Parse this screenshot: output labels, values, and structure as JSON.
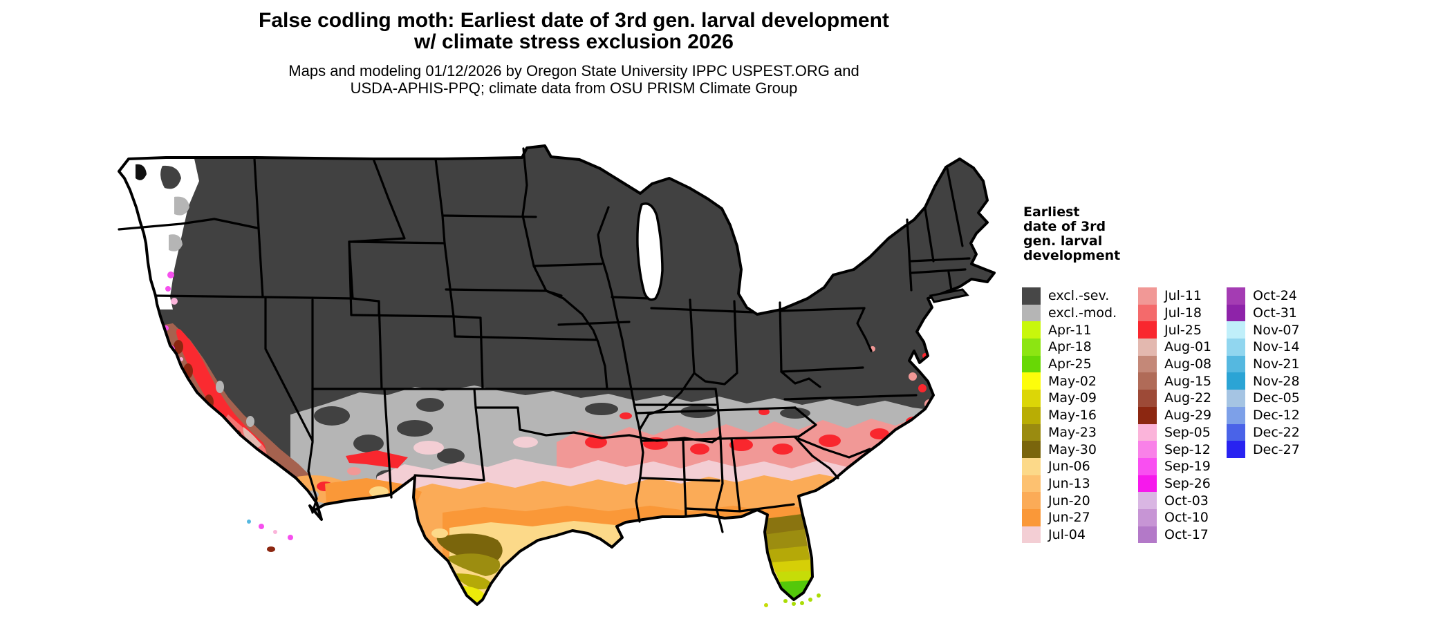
{
  "title": {
    "line1": "False codling moth: Earliest date of 3rd gen. larval development",
    "line2": "w/ climate stress exclusion 2026"
  },
  "subtitle": {
    "line1": "Maps and modeling 01/12/2026 by Oregon State University IPPC USPEST.ORG and",
    "line2": "USDA-APHIS-PPQ; climate data from OSU PRISM Climate Group"
  },
  "legend": {
    "title_lines": [
      "Earliest",
      "date of 3rd",
      "gen. larval",
      "development"
    ],
    "columns": [
      [
        {
          "label": "excl.-sev.",
          "color": "#474747"
        },
        {
          "label": "excl.-mod.",
          "color": "#b5b5b5"
        },
        {
          "label": "Apr-11",
          "color": "#c8f70c"
        },
        {
          "label": "Apr-18",
          "color": "#8ce512"
        },
        {
          "label": "Apr-25",
          "color": "#68d805"
        },
        {
          "label": "May-02",
          "color": "#fdfd0b"
        },
        {
          "label": "May-09",
          "color": "#dcd607"
        },
        {
          "label": "May-16",
          "color": "#b9ad04"
        },
        {
          "label": "May-23",
          "color": "#9a8b10"
        },
        {
          "label": "May-30",
          "color": "#7a650c"
        },
        {
          "label": "Jun-06",
          "color": "#fcd989"
        },
        {
          "label": "Jun-13",
          "color": "#fdc170"
        },
        {
          "label": "Jun-20",
          "color": "#fbab57"
        },
        {
          "label": "Jun-27",
          "color": "#fa9838"
        },
        {
          "label": "Jul-04",
          "color": "#f3ced4"
        }
      ],
      [
        {
          "label": "Jul-11",
          "color": "#f19896"
        },
        {
          "label": "Jul-18",
          "color": "#f46a6b"
        },
        {
          "label": "Jul-25",
          "color": "#f9272e"
        },
        {
          "label": "Aug-01",
          "color": "#e3b8af"
        },
        {
          "label": "Aug-08",
          "color": "#c48878"
        },
        {
          "label": "Aug-15",
          "color": "#b06b58"
        },
        {
          "label": "Aug-22",
          "color": "#9d4a37"
        },
        {
          "label": "Aug-29",
          "color": "#8c2711"
        },
        {
          "label": "Sep-05",
          "color": "#fbb4da"
        },
        {
          "label": "Sep-12",
          "color": "#f981e8"
        },
        {
          "label": "Sep-19",
          "color": "#f94ff1"
        },
        {
          "label": "Sep-26",
          "color": "#f619ec"
        },
        {
          "label": "Oct-03",
          "color": "#d9b6e3"
        },
        {
          "label": "Oct-10",
          "color": "#c795d5"
        },
        {
          "label": "Oct-17",
          "color": "#b379c8"
        }
      ],
      [
        {
          "label": "Oct-24",
          "color": "#a43cb3"
        },
        {
          "label": "Oct-31",
          "color": "#8e23a9"
        },
        {
          "label": "Nov-07",
          "color": "#c0effa"
        },
        {
          "label": "Nov-14",
          "color": "#91d6ef"
        },
        {
          "label": "Nov-21",
          "color": "#55b8e0"
        },
        {
          "label": "Nov-28",
          "color": "#2ba4d5"
        },
        {
          "label": "Dec-05",
          "color": "#a5c4e3"
        },
        {
          "label": "Dec-12",
          "color": "#7da0e8"
        },
        {
          "label": "Dec-22",
          "color": "#4a63e8"
        },
        {
          "label": "Dec-27",
          "color": "#2823f1"
        }
      ]
    ]
  },
  "map": {
    "region": "Conterminous United States",
    "type": "raster choropleth with state borders",
    "dominant_colors": {
      "excluded_severe": "#414141",
      "excluded_moderate": "#b5b5b5",
      "no_data_background": "#ffffff",
      "state_border": "#000000"
    }
  }
}
